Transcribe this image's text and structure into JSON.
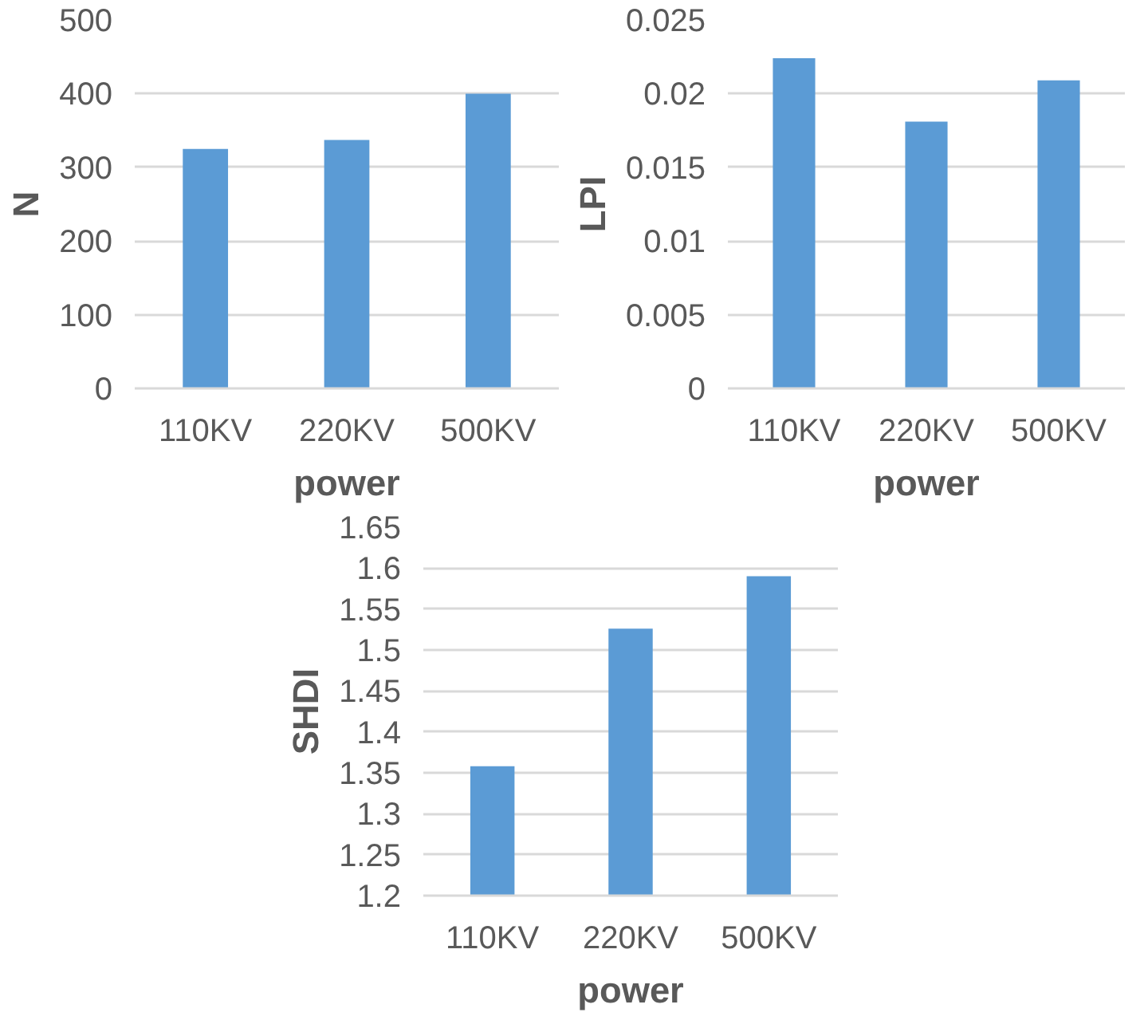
{
  "chart_data": [
    {
      "type": "bar",
      "xlabel": "power",
      "ylabel": "N",
      "categories": [
        "110KV",
        "220KV",
        "500KV"
      ],
      "values": [
        325,
        337,
        400
      ],
      "color": "#5b9bd5",
      "ylim": [
        0,
        500
      ],
      "yticks": [
        0,
        100,
        200,
        300,
        400,
        500
      ],
      "grid": "y"
    },
    {
      "type": "bar",
      "xlabel": "power",
      "ylabel": "LPI",
      "categories": [
        "110KV",
        "220KV",
        "500KV"
      ],
      "values": [
        0.0224,
        0.0181,
        0.0209
      ],
      "color": "#5b9bd5",
      "ylim": [
        0,
        0.025
      ],
      "yticks": [
        0,
        0.005,
        0.01,
        0.015,
        0.02,
        0.025
      ],
      "grid": "y"
    },
    {
      "type": "bar",
      "xlabel": "power",
      "ylabel": "SHDI",
      "categories": [
        "110KV",
        "220KV",
        "500KV"
      ],
      "values": [
        1.358,
        1.526,
        1.59
      ],
      "color": "#5b9bd5",
      "ylim": [
        1.2,
        1.65
      ],
      "yticks": [
        1.2,
        1.25,
        1.3,
        1.35,
        1.4,
        1.45,
        1.5,
        1.55,
        1.6,
        1.65
      ],
      "grid": "y"
    }
  ]
}
